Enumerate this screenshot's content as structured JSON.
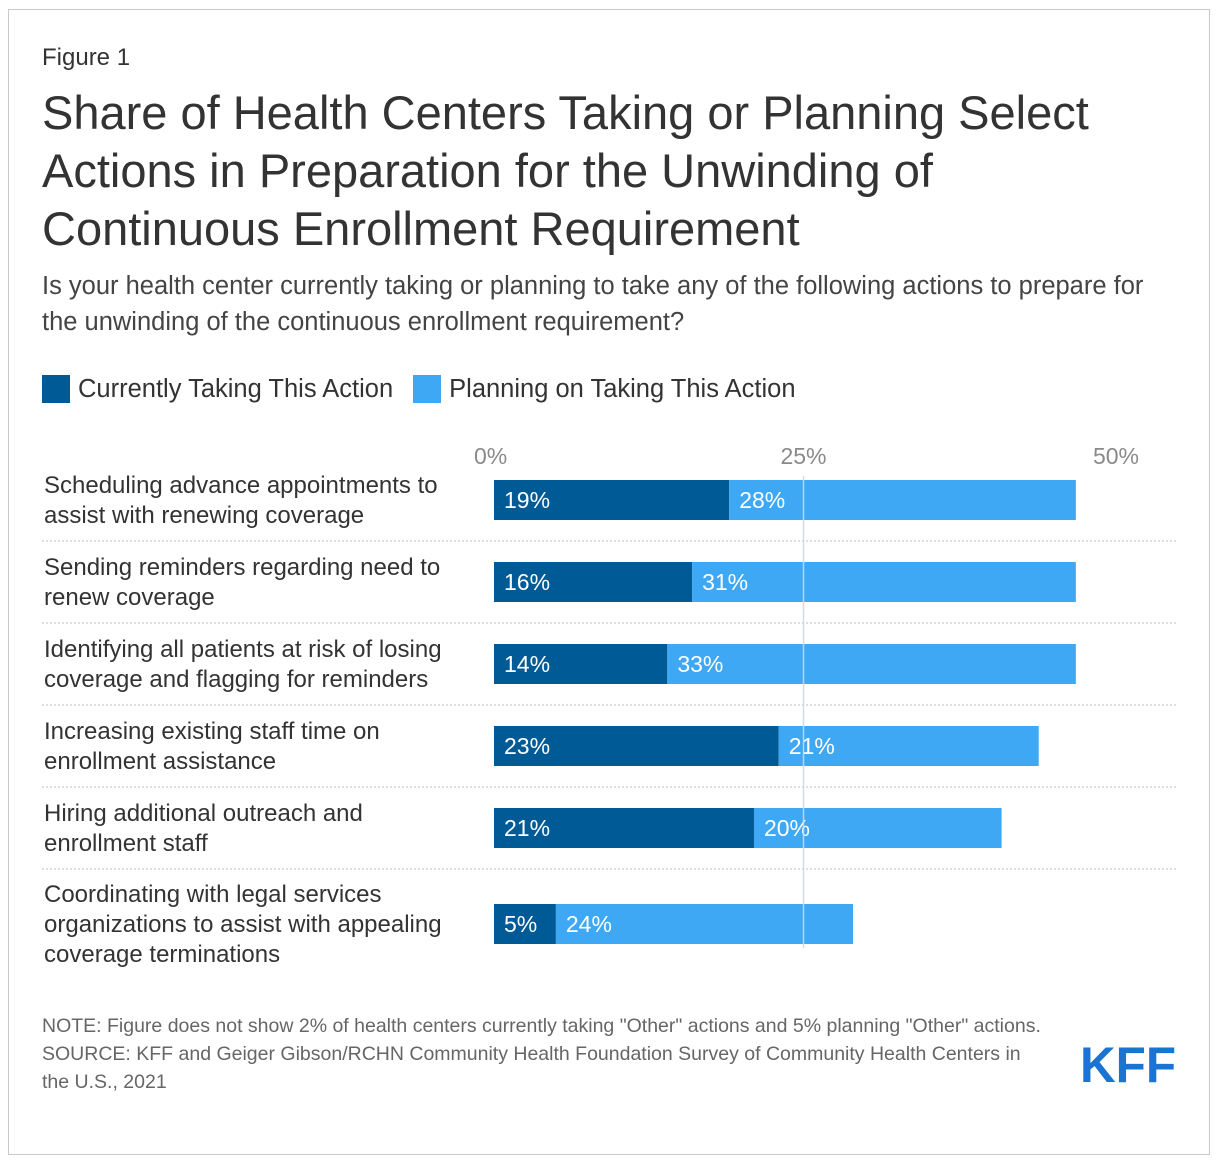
{
  "figure_label": "Figure 1",
  "title": "Share of Health Centers Taking or Planning Select Actions in Preparation for the Unwinding of Continuous Enrollment Requirement",
  "subtitle": "Is your health center currently taking or planning to take any of the following actions to prepare for the unwinding of the continuous enrollment requirement?",
  "colors": {
    "current": "#005a96",
    "planning": "#3ea8f5",
    "gridline": "#cfd8e0",
    "logo": "#1a75d2"
  },
  "chart_data": {
    "type": "bar",
    "orientation": "horizontal",
    "stacked": true,
    "categories": [
      [
        "Scheduling advance appointments to",
        "assist with renewing coverage"
      ],
      [
        "Sending reminders regarding need to",
        "renew coverage"
      ],
      [
        "Identifying all patients at risk of losing",
        "coverage and flagging for reminders"
      ],
      [
        "Increasing existing staff time on",
        "enrollment assistance"
      ],
      [
        "Hiring additional outreach and",
        "enrollment staff"
      ],
      [
        "Coordinating with legal services",
        "organizations to assist with appealing",
        "coverage terminations"
      ]
    ],
    "series": [
      {
        "name": "Currently Taking This Action",
        "values": [
          19,
          16,
          14,
          23,
          21,
          5
        ],
        "labels": [
          "19%",
          "16%",
          "14%",
          "23%",
          "21%",
          "5%"
        ]
      },
      {
        "name": "Planning on Taking This Action",
        "values": [
          28,
          31,
          33,
          21,
          20,
          24
        ],
        "labels": [
          "28%",
          "31%",
          "33%",
          "21%",
          "20%",
          "24%"
        ]
      }
    ],
    "xlim": [
      0,
      50
    ],
    "ticks": [
      0,
      25,
      50
    ],
    "tick_labels": [
      "0%",
      "25%",
      "50%"
    ],
    "legend_position": "top-left"
  },
  "notes": {
    "note": "NOTE: Figure does not show 2% of health centers currently taking \"Other\" actions and 5% planning \"Other\" actions.",
    "source": "SOURCE: KFF and Geiger Gibson/RCHN Community Health Foundation Survey of Community Health Centers in the U.S., 2021"
  },
  "logo": {
    "text": "KFF"
  }
}
